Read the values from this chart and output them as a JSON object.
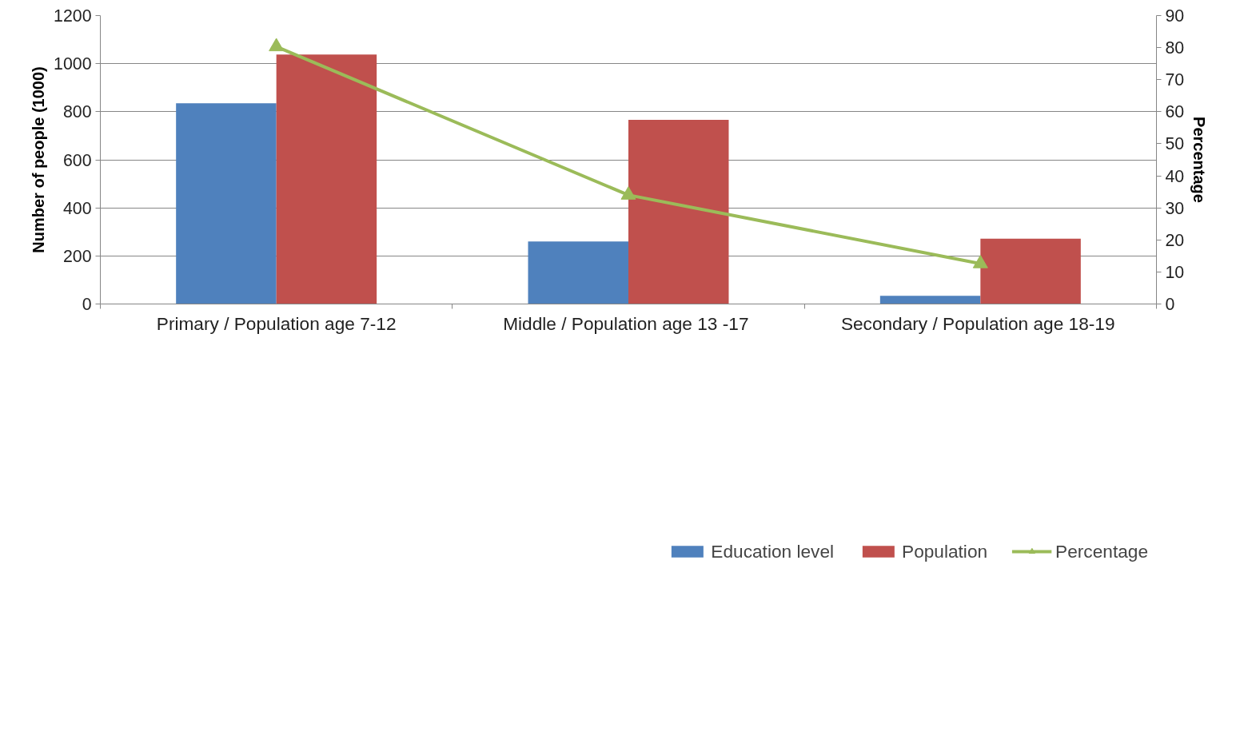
{
  "chart_data": {
    "type": "bar",
    "categories": [
      "Primary / Population age 7-12",
      "Middle  / Population age 13 -17",
      "Secondary  / Population age 18-19"
    ],
    "series": [
      {
        "name": "Education level",
        "color": "#4f81bd",
        "values": [
          835,
          260,
          34
        ]
      },
      {
        "name": "Population",
        "color": "#c0504d",
        "values": [
          1038,
          766,
          272
        ]
      },
      {
        "name": "Percentage",
        "color": "#9bbb59",
        "type": "line",
        "axis": "y2",
        "marker": "triangle",
        "values": [
          80.3,
          34.0,
          12.6
        ]
      }
    ],
    "ylabel": "Number of people (1000)",
    "y2label": "Percentage",
    "ylim": [
      0,
      1200
    ],
    "yticks": [
      0,
      200,
      400,
      600,
      800,
      1000,
      1200
    ],
    "y2lim": [
      0,
      90
    ],
    "y2ticks": [
      0,
      10,
      20,
      30,
      40,
      50,
      60,
      70,
      80,
      90
    ],
    "grid": "y",
    "legend": "bottom"
  }
}
